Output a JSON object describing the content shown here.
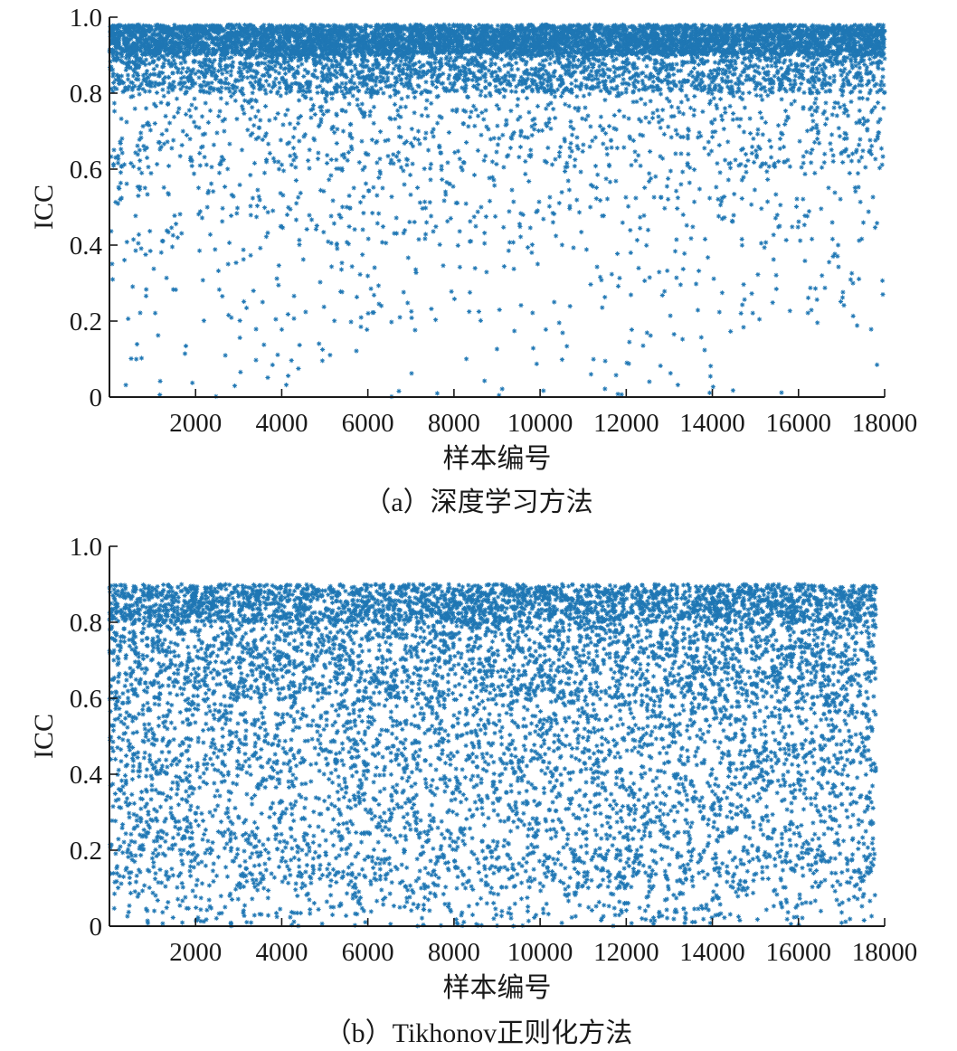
{
  "chart_data": [
    {
      "type": "scatter",
      "caption": "（a）深度学习方法",
      "xlabel": "样本编号",
      "ylabel": "ICC",
      "xlim": [
        0,
        18000
      ],
      "ylim": [
        0,
        1.0
      ],
      "xticks": [
        2000,
        4000,
        6000,
        8000,
        10000,
        12000,
        14000,
        16000,
        18000
      ],
      "yticks": [
        0,
        0.2,
        0.4,
        0.6,
        0.8,
        1.0
      ],
      "ytick_labels": [
        "0",
        "0.2",
        "0.4",
        "0.6",
        "0.8",
        "1.0"
      ],
      "xtick_labels": [
        "2000",
        "4000",
        "6000",
        "8000",
        "10000",
        "12000",
        "14000",
        "16000",
        "18000"
      ],
      "marker": "*",
      "color": "#1f77b4",
      "grid": false,
      "legend": "none",
      "series": [
        {
          "sample_count": 18000,
          "distribution": [
            {
              "y_range": [
                0.9,
                0.98
              ],
              "share": 0.62
            },
            {
              "y_range": [
                0.8,
                0.9
              ],
              "share": 0.22
            },
            {
              "y_range": [
                0.6,
                0.8
              ],
              "share": 0.09
            },
            {
              "y_range": [
                0.4,
                0.6
              ],
              "share": 0.04
            },
            {
              "y_range": [
                0.2,
                0.4
              ],
              "share": 0.02
            },
            {
              "y_range": [
                0.0,
                0.2
              ],
              "share": 0.01
            }
          ]
        }
      ]
    },
    {
      "type": "scatter",
      "caption": "（b）Tikhonov正则化方法",
      "xlabel": "样本编号",
      "ylabel": "ICC",
      "xlim": [
        0,
        18000
      ],
      "ylim": [
        0,
        1.0
      ],
      "xticks": [
        2000,
        4000,
        6000,
        8000,
        10000,
        12000,
        14000,
        16000,
        18000
      ],
      "yticks": [
        0,
        0.2,
        0.4,
        0.6,
        0.8,
        1.0
      ],
      "ytick_labels": [
        "0",
        "0.2",
        "0.4",
        "0.6",
        "0.8",
        "1.0"
      ],
      "xtick_labels": [
        "2000",
        "4000",
        "6000",
        "8000",
        "10000",
        "12000",
        "14000",
        "16000",
        "18000"
      ],
      "marker": "*",
      "color": "#1f77b4",
      "grid": false,
      "legend": "none",
      "series": [
        {
          "sample_count": 17800,
          "distribution": [
            {
              "y_range": [
                0.8,
                0.9
              ],
              "share": 0.3
            },
            {
              "y_range": [
                0.6,
                0.8
              ],
              "share": 0.27
            },
            {
              "y_range": [
                0.4,
                0.6
              ],
              "share": 0.17
            },
            {
              "y_range": [
                0.2,
                0.4
              ],
              "share": 0.14
            },
            {
              "y_range": [
                0.1,
                0.2
              ],
              "share": 0.08
            },
            {
              "y_range": [
                0.0,
                0.1
              ],
              "share": 0.04
            }
          ]
        }
      ]
    }
  ]
}
